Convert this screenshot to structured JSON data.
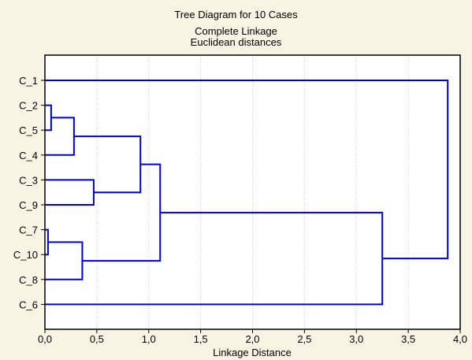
{
  "chart_data": {
    "type": "dendrogram",
    "title": "Tree Diagram for 10 Cases",
    "subtitle_lines": [
      "Complete Linkage",
      "Euclidean distances"
    ],
    "xlabel": "Linkage Distance",
    "xlim": [
      0,
      4.0
    ],
    "x_ticks": [
      "0,0",
      "0,5",
      "1,0",
      "1,5",
      "2,0",
      "2,5",
      "3,0",
      "3,5",
      "4,0"
    ],
    "grid": "vertical dotted",
    "orientation": "horizontal",
    "cases": [
      "C_1",
      "C_2",
      "C_5",
      "C_4",
      "C_3",
      "C_9",
      "C_7",
      "C_10",
      "C_8",
      "C_6"
    ],
    "merges": [
      {
        "a": "C_7",
        "b": "C_10",
        "distance": 0.03
      },
      {
        "a": "C_2",
        "b": "C_5",
        "distance": 0.06
      },
      {
        "a": "C_2+C_5",
        "b": "C_4",
        "distance": 0.28
      },
      {
        "a": "C_7+C_10",
        "b": "C_8",
        "distance": 0.36
      },
      {
        "a": "C_3",
        "b": "C_9",
        "distance": 0.47
      },
      {
        "a": "C_2+C_5+C_4",
        "b": "C_3+C_9",
        "distance": 0.92
      },
      {
        "a": "C_2+C_5+C_4+C_3+C_9",
        "b": "C_7+C_10+C_8",
        "distance": 1.11
      },
      {
        "a": "C_2+C_5+C_4+C_3+C_9+C_7+C_10+C_8",
        "b": "C_6",
        "distance": 3.25
      },
      {
        "a": "C_1",
        "b": "rest",
        "distance": 3.88
      }
    ]
  },
  "colors": {
    "background": "#f7f4e4",
    "plot_area": "#ffffff",
    "tree_line": "#0000cc",
    "grid": "#c8c8c8"
  }
}
